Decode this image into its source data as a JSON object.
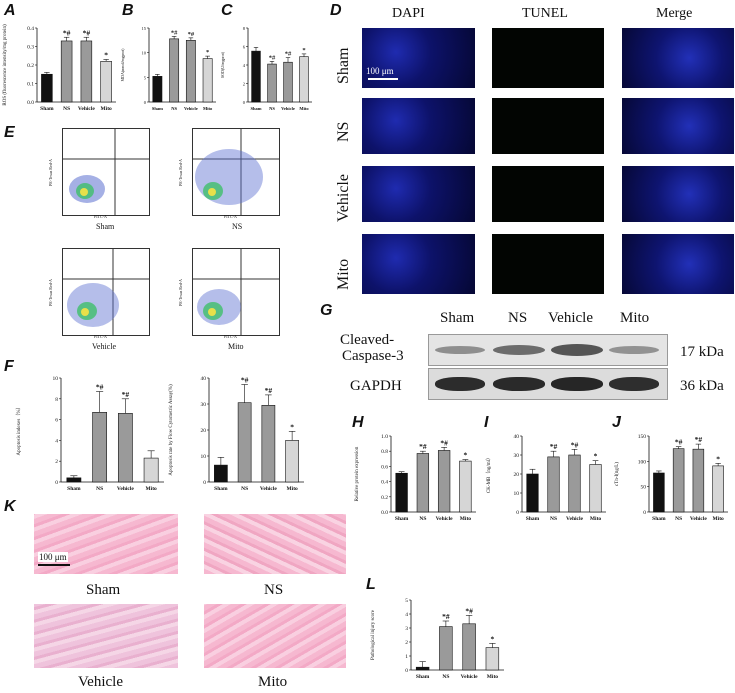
{
  "panels": {
    "A": "A",
    "B": "B",
    "C": "C",
    "D": "D",
    "E": "E",
    "F": "F",
    "G": "G",
    "H": "H",
    "I": "I",
    "J": "J",
    "K": "K",
    "L": "L"
  },
  "groups": [
    "Sham",
    "NS",
    "Vehicle",
    "Mito"
  ],
  "colors": {
    "sham": "#111111",
    "ns": "#9a9a9a",
    "vehicle": "#9a9a9a",
    "mito": "#d6d6d6"
  },
  "microscopy": {
    "headers": [
      "DAPI",
      "TUNEL",
      "Merge"
    ],
    "rows": [
      "Sham",
      "NS",
      "Vehicle",
      "Mito"
    ],
    "scalebar": "100 μm"
  },
  "flow": {
    "labels": [
      "Sham",
      "NS",
      "Vehicle",
      "Mito"
    ],
    "xaxis": "FITC-A",
    "yaxis": "PE-Texas Red-A"
  },
  "western": {
    "lanes": [
      "Sham",
      "NS",
      "Vehicle",
      "Mito"
    ],
    "bands": [
      {
        "name": "Cleaved-\nCaspase-3",
        "line1": "Cleaved-",
        "line2": "Caspase-3",
        "kda": "17 kDa"
      },
      {
        "name": "GAPDH",
        "kda": "36 kDa"
      }
    ]
  },
  "he": {
    "labels": [
      "Sham",
      "NS",
      "Vehicle",
      "Mito"
    ],
    "scalebar": "100 μm"
  },
  "chart_data": [
    {
      "id": "A",
      "type": "bar",
      "categories": [
        "Sham",
        "NS",
        "Vehicle",
        "Mito"
      ],
      "values": [
        0.15,
        0.33,
        0.33,
        0.22
      ],
      "errors": [
        0.01,
        0.02,
        0.02,
        0.01
      ],
      "ylabel": "ROS (fluorescence intensity/mg protein)",
      "ylim": [
        0,
        0.4
      ],
      "yticks": [
        "0.0",
        "0.1",
        "0.2",
        "0.3",
        "0.4"
      ],
      "annotations": [
        "",
        "*#",
        "*#",
        "*"
      ]
    },
    {
      "id": "B",
      "type": "bar",
      "categories": [
        "Sham",
        "NS",
        "Vehicle",
        "Mito"
      ],
      "values": [
        5.2,
        12.8,
        12.5,
        8.8
      ],
      "errors": [
        0.4,
        0.5,
        0.5,
        0.5
      ],
      "ylabel": "MDA(nmol/mgprot)",
      "ylim": [
        0,
        15
      ],
      "yticks": [
        "0",
        "5",
        "10",
        "15"
      ],
      "annotations": [
        "",
        "*#",
        "*#",
        "*"
      ]
    },
    {
      "id": "C",
      "type": "bar",
      "categories": [
        "Sham",
        "NS",
        "Vehicle",
        "Mito"
      ],
      "values": [
        5.5,
        4.1,
        4.3,
        4.9
      ],
      "errors": [
        0.4,
        0.3,
        0.5,
        0.3
      ],
      "ylabel": "SOD(U/mgprot)",
      "ylim": [
        0,
        8
      ],
      "yticks": [
        "0",
        "2",
        "4",
        "6",
        "8"
      ],
      "annotations": [
        "",
        "*#",
        "*#",
        "*"
      ]
    },
    {
      "id": "F1",
      "type": "bar",
      "categories": [
        "Sham",
        "NS",
        "Vehicle",
        "Mito"
      ],
      "values": [
        0.4,
        6.7,
        6.6,
        2.3
      ],
      "errors": [
        0.2,
        2.0,
        1.4,
        0.7
      ],
      "ylabel": "Apoptosis indexes（%）",
      "ylim": [
        0,
        10
      ],
      "yticks": [
        "0",
        "2",
        "4",
        "6",
        "8",
        "10"
      ],
      "annotations": [
        "",
        "*#",
        "*#",
        ""
      ]
    },
    {
      "id": "F2",
      "type": "bar",
      "categories": [
        "Sham",
        "NS",
        "Vehicle",
        "Mito"
      ],
      "values": [
        6.5,
        30.5,
        29.5,
        16
      ],
      "errors": [
        3,
        7,
        4,
        3.5
      ],
      "ylabel": "Apoptosis rate by Flow Cytometric Assay(%)",
      "ylim": [
        0,
        40
      ],
      "yticks": [
        "0",
        "10",
        "20",
        "30",
        "40"
      ],
      "annotations": [
        "",
        "*#",
        "*#",
        "*"
      ]
    },
    {
      "id": "H",
      "type": "bar",
      "categories": [
        "Sham",
        "NS",
        "Vehicle",
        "Mito"
      ],
      "values": [
        0.51,
        0.77,
        0.81,
        0.67
      ],
      "errors": [
        0.02,
        0.03,
        0.04,
        0.02
      ],
      "ylabel": "Relative protein expression",
      "ylim": [
        0,
        1.0
      ],
      "yticks": [
        "0.0",
        "0.2",
        "0.4",
        "0.6",
        "0.8",
        "1.0"
      ],
      "annotations": [
        "",
        "*#",
        "*#",
        "*"
      ]
    },
    {
      "id": "I",
      "type": "bar",
      "categories": [
        "Sham",
        "NS",
        "Vehicle",
        "Mito"
      ],
      "values": [
        20,
        29,
        30,
        25
      ],
      "errors": [
        2.5,
        3,
        3,
        2
      ],
      "ylabel": "CK-MB（ng/ml）",
      "ylim": [
        0,
        40
      ],
      "yticks": [
        "0",
        "10",
        "20",
        "30",
        "40"
      ],
      "annotations": [
        "",
        "*#",
        "*#",
        "*"
      ]
    },
    {
      "id": "J",
      "type": "bar",
      "categories": [
        "Sham",
        "NS",
        "Vehicle",
        "Mito"
      ],
      "values": [
        77,
        125,
        124,
        91
      ],
      "errors": [
        4,
        4,
        10,
        5
      ],
      "ylabel": "cTn-I(ng/L)",
      "ylim": [
        0,
        150
      ],
      "yticks": [
        "0",
        "50",
        "100",
        "150"
      ],
      "annotations": [
        "",
        "*#",
        "*#",
        "*"
      ]
    },
    {
      "id": "L",
      "type": "bar",
      "categories": [
        "Sham",
        "NS",
        "Vehicle",
        "Mito"
      ],
      "values": [
        0.2,
        3.1,
        3.3,
        1.6
      ],
      "errors": [
        0.4,
        0.4,
        0.6,
        0.3
      ],
      "ylabel": "Pathological injury score",
      "ylim": [
        0,
        5
      ],
      "yticks": [
        "0",
        "1",
        "2",
        "3",
        "4",
        "5"
      ],
      "annotations": [
        "",
        "*#",
        "*#",
        "*"
      ]
    }
  ]
}
